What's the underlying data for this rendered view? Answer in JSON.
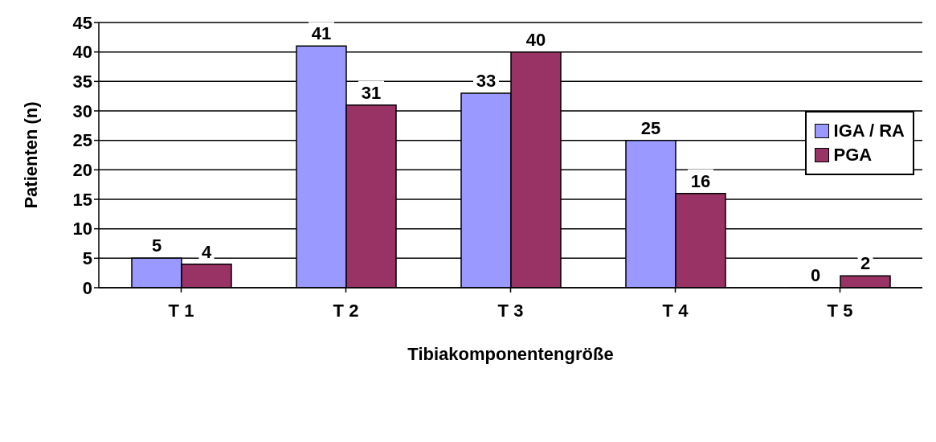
{
  "chart_data": {
    "type": "bar",
    "xlabel": "Tibiakomponentengröße",
    "ylabel": "Patienten (n)",
    "categories": [
      "T 1",
      "T 2",
      "T 3",
      "T 4",
      "T 5"
    ],
    "series": [
      {
        "name": "IGA / RA",
        "color": "#9999ff",
        "values": [
          5,
          41,
          33,
          25,
          0
        ]
      },
      {
        "name": "PGA",
        "color": "#993366",
        "values": [
          4,
          31,
          40,
          16,
          2
        ]
      }
    ],
    "ylim": [
      0,
      45
    ],
    "yticks": [
      0,
      5,
      10,
      15,
      20,
      25,
      30,
      35,
      40,
      45
    ],
    "grid": "y",
    "legend": "right",
    "data_labels": true
  }
}
